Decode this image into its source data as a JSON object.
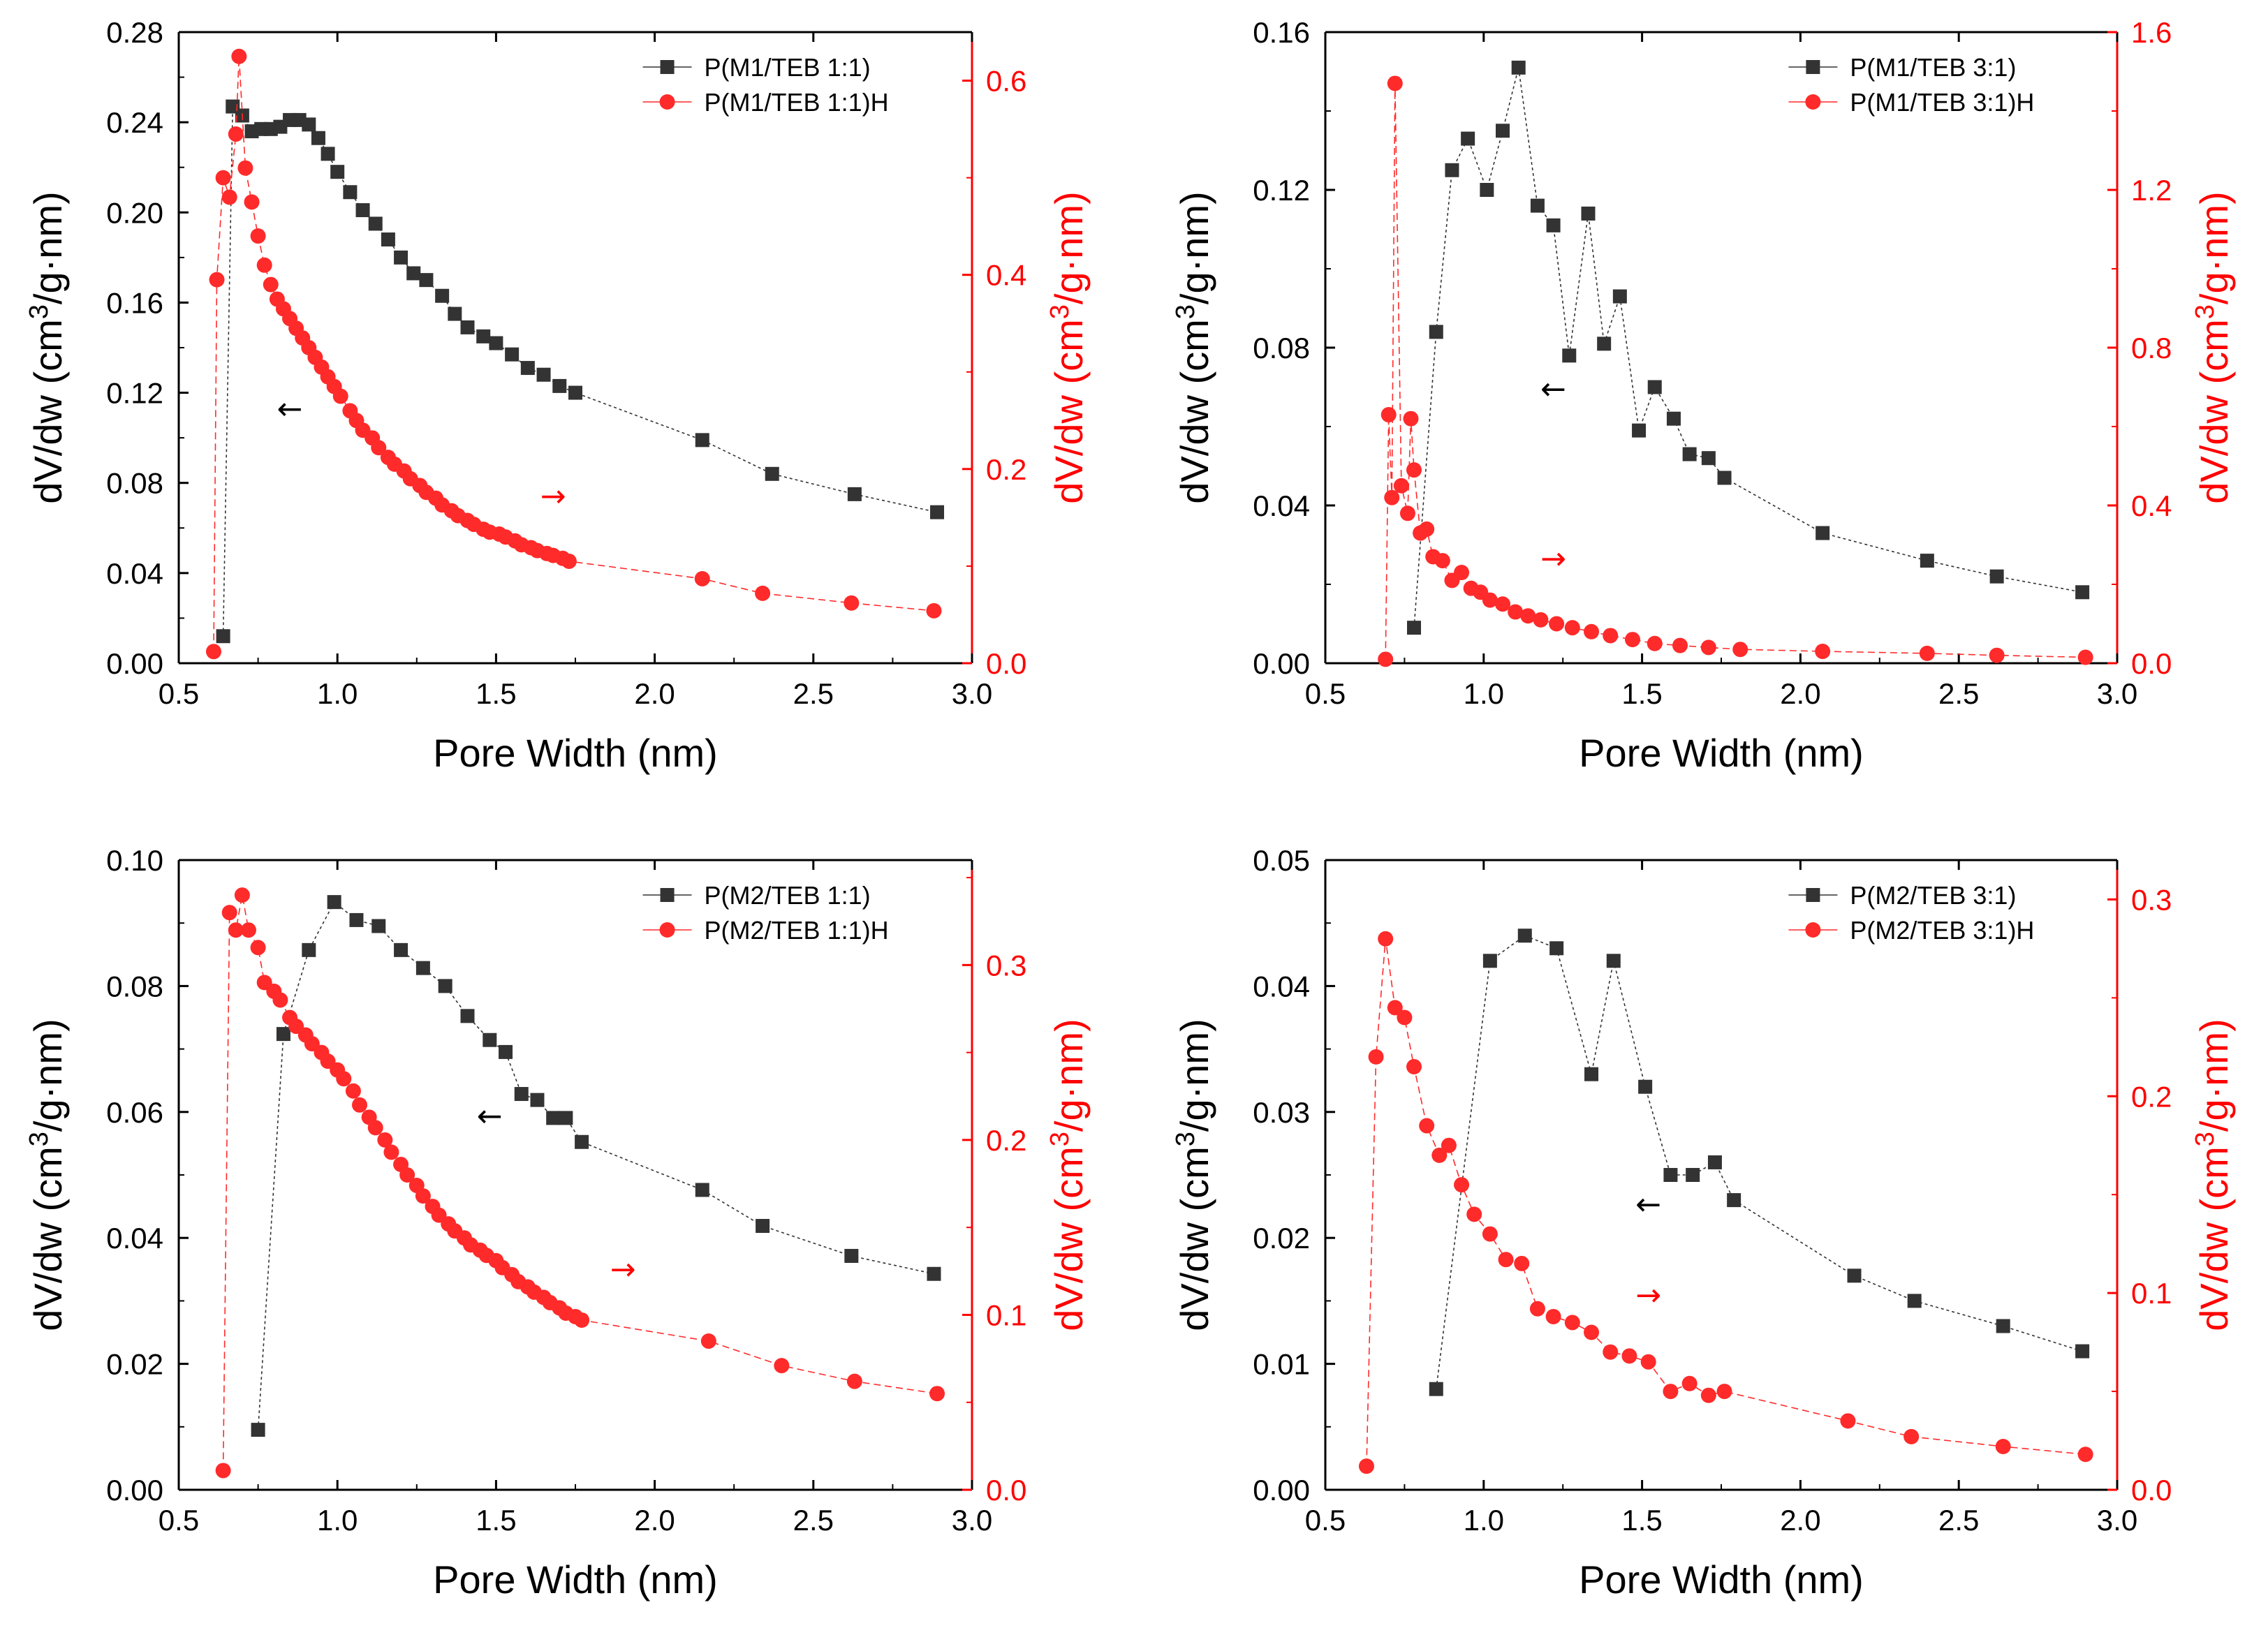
{
  "chart_data": [
    {
      "type": "line",
      "title": "",
      "xlabel": "Pore Width (nm)",
      "ylabel_left": {
        "pre": "dV/dw (cm",
        "sup": "3",
        "post": "/g·nm)"
      },
      "ylabel_right": {
        "pre": "dV/dw (cm",
        "sup": "3",
        "post": "/g·nm)"
      },
      "xlim": [
        0.5,
        3.0
      ],
      "xticks": [
        "0.5",
        "1.0",
        "1.5",
        "2.0",
        "2.5",
        "3.0"
      ],
      "ylim_left": [
        0,
        0.28
      ],
      "yticks_left": [
        "0.00",
        "0.04",
        "0.08",
        "0.12",
        "0.16",
        "0.20",
        "0.24",
        "0.28"
      ],
      "ylim_right": [
        0,
        0.65
      ],
      "yticks_right": [
        "0.0",
        "0.2",
        "0.4",
        "0.6"
      ],
      "yticks_right_values": [
        0,
        0.2,
        0.4,
        0.6
      ],
      "legend_position": "top-right",
      "series": [
        {
          "name": "P(M1/TEB 1:1)",
          "axis": "left",
          "color": "#333333",
          "marker": "square",
          "x": [
            0.64,
            0.67,
            0.7,
            0.73,
            0.76,
            0.79,
            0.82,
            0.85,
            0.88,
            0.91,
            0.94,
            0.97,
            1.0,
            1.04,
            1.08,
            1.12,
            1.16,
            1.2,
            1.24,
            1.28,
            1.33,
            1.37,
            1.41,
            1.46,
            1.5,
            1.55,
            1.6,
            1.65,
            1.7,
            1.75,
            2.15,
            2.37,
            2.63,
            2.89
          ],
          "y": [
            0.012,
            0.247,
            0.243,
            0.236,
            0.237,
            0.237,
            0.238,
            0.241,
            0.241,
            0.239,
            0.233,
            0.226,
            0.218,
            0.209,
            0.201,
            0.195,
            0.188,
            0.18,
            0.173,
            0.17,
            0.163,
            0.155,
            0.149,
            0.145,
            0.142,
            0.137,
            0.131,
            0.128,
            0.123,
            0.12,
            0.099,
            0.084,
            0.075,
            0.067
          ]
        },
        {
          "name": "P(M1/TEB 1:1)H",
          "axis": "right",
          "color": "#ff2a2a",
          "marker": "circle",
          "x": [
            0.61,
            0.62,
            0.64,
            0.66,
            0.68,
            0.69,
            0.71,
            0.73,
            0.75,
            0.77,
            0.79,
            0.81,
            0.83,
            0.85,
            0.87,
            0.89,
            0.91,
            0.93,
            0.95,
            0.97,
            0.99,
            1.01,
            1.04,
            1.06,
            1.08,
            1.11,
            1.13,
            1.16,
            1.18,
            1.21,
            1.23,
            1.26,
            1.28,
            1.31,
            1.33,
            1.36,
            1.38,
            1.41,
            1.43,
            1.46,
            1.48,
            1.51,
            1.53,
            1.56,
            1.58,
            1.61,
            1.63,
            1.66,
            1.68,
            1.71,
            1.73,
            2.15,
            2.34,
            2.62,
            2.88
          ],
          "y": [
            0.012,
            0.395,
            0.5,
            0.48,
            0.545,
            0.625,
            0.51,
            0.475,
            0.44,
            0.41,
            0.39,
            0.375,
            0.365,
            0.355,
            0.345,
            0.335,
            0.325,
            0.315,
            0.305,
            0.295,
            0.285,
            0.275,
            0.26,
            0.25,
            0.24,
            0.232,
            0.222,
            0.212,
            0.205,
            0.198,
            0.19,
            0.183,
            0.176,
            0.17,
            0.163,
            0.157,
            0.152,
            0.147,
            0.143,
            0.138,
            0.135,
            0.133,
            0.13,
            0.126,
            0.122,
            0.119,
            0.116,
            0.113,
            0.111,
            0.108,
            0.105,
            0.087,
            0.072,
            0.062,
            0.054
          ]
        }
      ],
      "annotations": [
        {
          "text": "←",
          "target_axis": "left",
          "color": "#000000",
          "x": 0.85,
          "y": 0.112
        },
        {
          "text": "→",
          "target_axis": "right",
          "color": "#ff0000",
          "x": 1.68,
          "y": 0.17
        }
      ]
    },
    {
      "type": "line",
      "title": "",
      "xlabel": "Pore Width (nm)",
      "ylabel_left": {
        "pre": "dV/dw (cm",
        "sup": "3",
        "post": "/g·nm)"
      },
      "ylabel_right": {
        "pre": "dV/dw (cm",
        "sup": "3",
        "post": "/g·nm)"
      },
      "xlim": [
        0.5,
        3.0
      ],
      "xticks": [
        "0.5",
        "1.0",
        "1.5",
        "2.0",
        "2.5",
        "3.0"
      ],
      "ylim_left": [
        0,
        0.16
      ],
      "yticks_left": [
        "0.00",
        "0.04",
        "0.08",
        "0.12",
        "0.16"
      ],
      "ylim_right": [
        0,
        1.6
      ],
      "yticks_right": [
        "0.0",
        "0.4",
        "0.8",
        "1.2",
        "1.6"
      ],
      "yticks_right_values": [
        0,
        0.4,
        0.8,
        1.2,
        1.6
      ],
      "legend_position": "top-right",
      "series": [
        {
          "name": "P(M1/TEB 3:1)",
          "axis": "left",
          "color": "#333333",
          "marker": "square",
          "x": [
            0.78,
            0.85,
            0.9,
            0.95,
            1.01,
            1.06,
            1.11,
            1.17,
            1.22,
            1.27,
            1.33,
            1.38,
            1.43,
            1.49,
            1.54,
            1.6,
            1.65,
            1.71,
            1.76,
            2.07,
            2.4,
            2.62,
            2.89
          ],
          "y": [
            0.009,
            0.084,
            0.125,
            0.133,
            0.12,
            0.135,
            0.151,
            0.116,
            0.111,
            0.078,
            0.114,
            0.081,
            0.093,
            0.059,
            0.07,
            0.062,
            0.053,
            0.052,
            0.047,
            0.033,
            0.026,
            0.022,
            0.018
          ]
        },
        {
          "name": "P(M1/TEB 3:1)H",
          "axis": "right",
          "color": "#ff2a2a",
          "marker": "circle",
          "x": [
            0.69,
            0.7,
            0.71,
            0.72,
            0.74,
            0.76,
            0.77,
            0.78,
            0.8,
            0.82,
            0.84,
            0.87,
            0.9,
            0.93,
            0.96,
            0.99,
            1.02,
            1.06,
            1.1,
            1.14,
            1.18,
            1.23,
            1.28,
            1.34,
            1.4,
            1.47,
            1.54,
            1.62,
            1.71,
            1.81,
            2.07,
            2.4,
            2.62,
            2.9
          ],
          "y": [
            0.01,
            0.63,
            0.42,
            1.47,
            0.45,
            0.38,
            0.62,
            0.49,
            0.33,
            0.34,
            0.27,
            0.26,
            0.21,
            0.23,
            0.19,
            0.18,
            0.16,
            0.15,
            0.13,
            0.12,
            0.11,
            0.1,
            0.09,
            0.08,
            0.07,
            0.06,
            0.05,
            0.045,
            0.04,
            0.035,
            0.03,
            0.025,
            0.02,
            0.015
          ]
        }
      ],
      "annotations": [
        {
          "text": "←",
          "target_axis": "left",
          "color": "#000000",
          "x": 1.22,
          "y": 0.069
        },
        {
          "text": "→",
          "target_axis": "right",
          "color": "#ff0000",
          "x": 1.22,
          "y": 0.26
        }
      ]
    },
    {
      "type": "line",
      "title": "",
      "xlabel": "Pore Width (nm)",
      "ylabel_left": {
        "pre": "dV/dw (cm",
        "sup": "3",
        "post": "/g·nm)"
      },
      "ylabel_right": {
        "pre": "dV/dw (cm",
        "sup": "3",
        "post": "/g·nm)"
      },
      "xlim": [
        0.5,
        3.0
      ],
      "xticks": [
        "0.5",
        "1.0",
        "1.5",
        "2.0",
        "2.5",
        "3.0"
      ],
      "ylim_left": [
        0,
        0.105
      ],
      "yticks_left": [
        "0.00",
        "0.02",
        "0.04",
        "0.06",
        "0.08",
        "0.10"
      ],
      "ylim_right": [
        0,
        0.36
      ],
      "yticks_right": [
        "0.0",
        "0.1",
        "0.2",
        "0.3"
      ],
      "yticks_right_values": [
        0,
        0.1,
        0.2,
        0.3
      ],
      "legend_position": "top-right",
      "series": [
        {
          "name": "P(M2/TEB 1:1)",
          "axis": "left",
          "color": "#333333",
          "marker": "square",
          "x": [
            0.75,
            0.83,
            0.91,
            0.99,
            1.06,
            1.13,
            1.2,
            1.27,
            1.34,
            1.41,
            1.48,
            1.53,
            1.58,
            1.63,
            1.68,
            1.72,
            1.77,
            2.15,
            2.34,
            2.62,
            2.88
          ],
          "y": [
            0.01,
            0.076,
            0.09,
            0.098,
            0.095,
            0.094,
            0.09,
            0.087,
            0.084,
            0.079,
            0.075,
            0.073,
            0.066,
            0.065,
            0.062,
            0.062,
            0.058,
            0.05,
            0.044,
            0.039,
            0.036
          ]
        },
        {
          "name": "P(M2/TEB 1:1)H",
          "axis": "right",
          "color": "#ff2a2a",
          "marker": "circle",
          "x": [
            0.64,
            0.66,
            0.68,
            0.7,
            0.72,
            0.75,
            0.77,
            0.8,
            0.82,
            0.85,
            0.87,
            0.9,
            0.92,
            0.95,
            0.97,
            1.0,
            1.02,
            1.05,
            1.07,
            1.1,
            1.12,
            1.15,
            1.17,
            1.2,
            1.22,
            1.25,
            1.27,
            1.3,
            1.32,
            1.35,
            1.37,
            1.4,
            1.42,
            1.45,
            1.47,
            1.5,
            1.52,
            1.55,
            1.57,
            1.6,
            1.62,
            1.65,
            1.67,
            1.7,
            1.72,
            1.75,
            1.77,
            2.17,
            2.4,
            2.63,
            2.89
          ],
          "y": [
            0.011,
            0.33,
            0.32,
            0.34,
            0.32,
            0.31,
            0.29,
            0.285,
            0.28,
            0.27,
            0.265,
            0.26,
            0.255,
            0.25,
            0.245,
            0.24,
            0.235,
            0.228,
            0.22,
            0.213,
            0.207,
            0.2,
            0.193,
            0.186,
            0.18,
            0.174,
            0.168,
            0.162,
            0.157,
            0.152,
            0.148,
            0.144,
            0.14,
            0.137,
            0.134,
            0.131,
            0.127,
            0.123,
            0.119,
            0.116,
            0.113,
            0.11,
            0.107,
            0.104,
            0.101,
            0.099,
            0.097,
            0.085,
            0.071,
            0.062,
            0.055
          ]
        }
      ],
      "annotations": [
        {
          "text": "←",
          "target_axis": "left",
          "color": "#000000",
          "x": 1.48,
          "y": 0.062
        },
        {
          "text": "→",
          "target_axis": "right",
          "color": "#ff0000",
          "x": 1.9,
          "y": 0.125
        }
      ]
    },
    {
      "type": "line",
      "title": "",
      "xlabel": "Pore Width (nm)",
      "ylabel_left": {
        "pre": "dV/dw (cm",
        "sup": "3",
        "post": "/g·nm)"
      },
      "ylabel_right": {
        "pre": "dV/dw (cm",
        "sup": "3",
        "post": "/g·nm)"
      },
      "xlim": [
        0.5,
        3.0
      ],
      "xticks": [
        "0.5",
        "1.0",
        "1.5",
        "2.0",
        "2.5",
        "3.0"
      ],
      "ylim_left": [
        0,
        0.05
      ],
      "yticks_left": [
        "0.00",
        "0.01",
        "0.02",
        "0.03",
        "0.04",
        "0.05"
      ],
      "ylim_right": [
        0,
        0.32
      ],
      "yticks_right": [
        "0.0",
        "0.1",
        "0.2",
        "0.3"
      ],
      "yticks_right_values": [
        0,
        0.1,
        0.2,
        0.3
      ],
      "legend_position": "top-right",
      "series": [
        {
          "name": "P(M2/TEB 3:1)",
          "axis": "left",
          "color": "#333333",
          "marker": "square",
          "x": [
            0.85,
            1.02,
            1.13,
            1.23,
            1.34,
            1.41,
            1.51,
            1.59,
            1.66,
            1.73,
            1.79,
            2.17,
            2.36,
            2.64,
            2.89
          ],
          "y": [
            0.008,
            0.042,
            0.044,
            0.043,
            0.033,
            0.042,
            0.032,
            0.025,
            0.025,
            0.026,
            0.023,
            0.017,
            0.015,
            0.013,
            0.011
          ]
        },
        {
          "name": "P(M2/TEB 3:1)H",
          "axis": "right",
          "color": "#ff2a2a",
          "marker": "circle",
          "x": [
            0.63,
            0.66,
            0.69,
            0.72,
            0.75,
            0.78,
            0.82,
            0.86,
            0.89,
            0.93,
            0.97,
            1.02,
            1.07,
            1.12,
            1.17,
            1.22,
            1.28,
            1.34,
            1.4,
            1.46,
            1.52,
            1.59,
            1.65,
            1.71,
            1.76,
            2.15,
            2.35,
            2.64,
            2.9
          ],
          "y": [
            0.012,
            0.22,
            0.28,
            0.245,
            0.24,
            0.215,
            0.185,
            0.17,
            0.175,
            0.155,
            0.14,
            0.13,
            0.117,
            0.115,
            0.092,
            0.088,
            0.085,
            0.08,
            0.07,
            0.068,
            0.065,
            0.05,
            0.054,
            0.048,
            0.05,
            0.035,
            0.027,
            0.022,
            0.018
          ]
        }
      ],
      "annotations": [
        {
          "text": "←",
          "target_axis": "left",
          "color": "#000000",
          "x": 1.52,
          "y": 0.0225
        },
        {
          "text": "→",
          "target_axis": "right",
          "color": "#ff0000",
          "x": 1.52,
          "y": 0.098
        }
      ]
    }
  ]
}
